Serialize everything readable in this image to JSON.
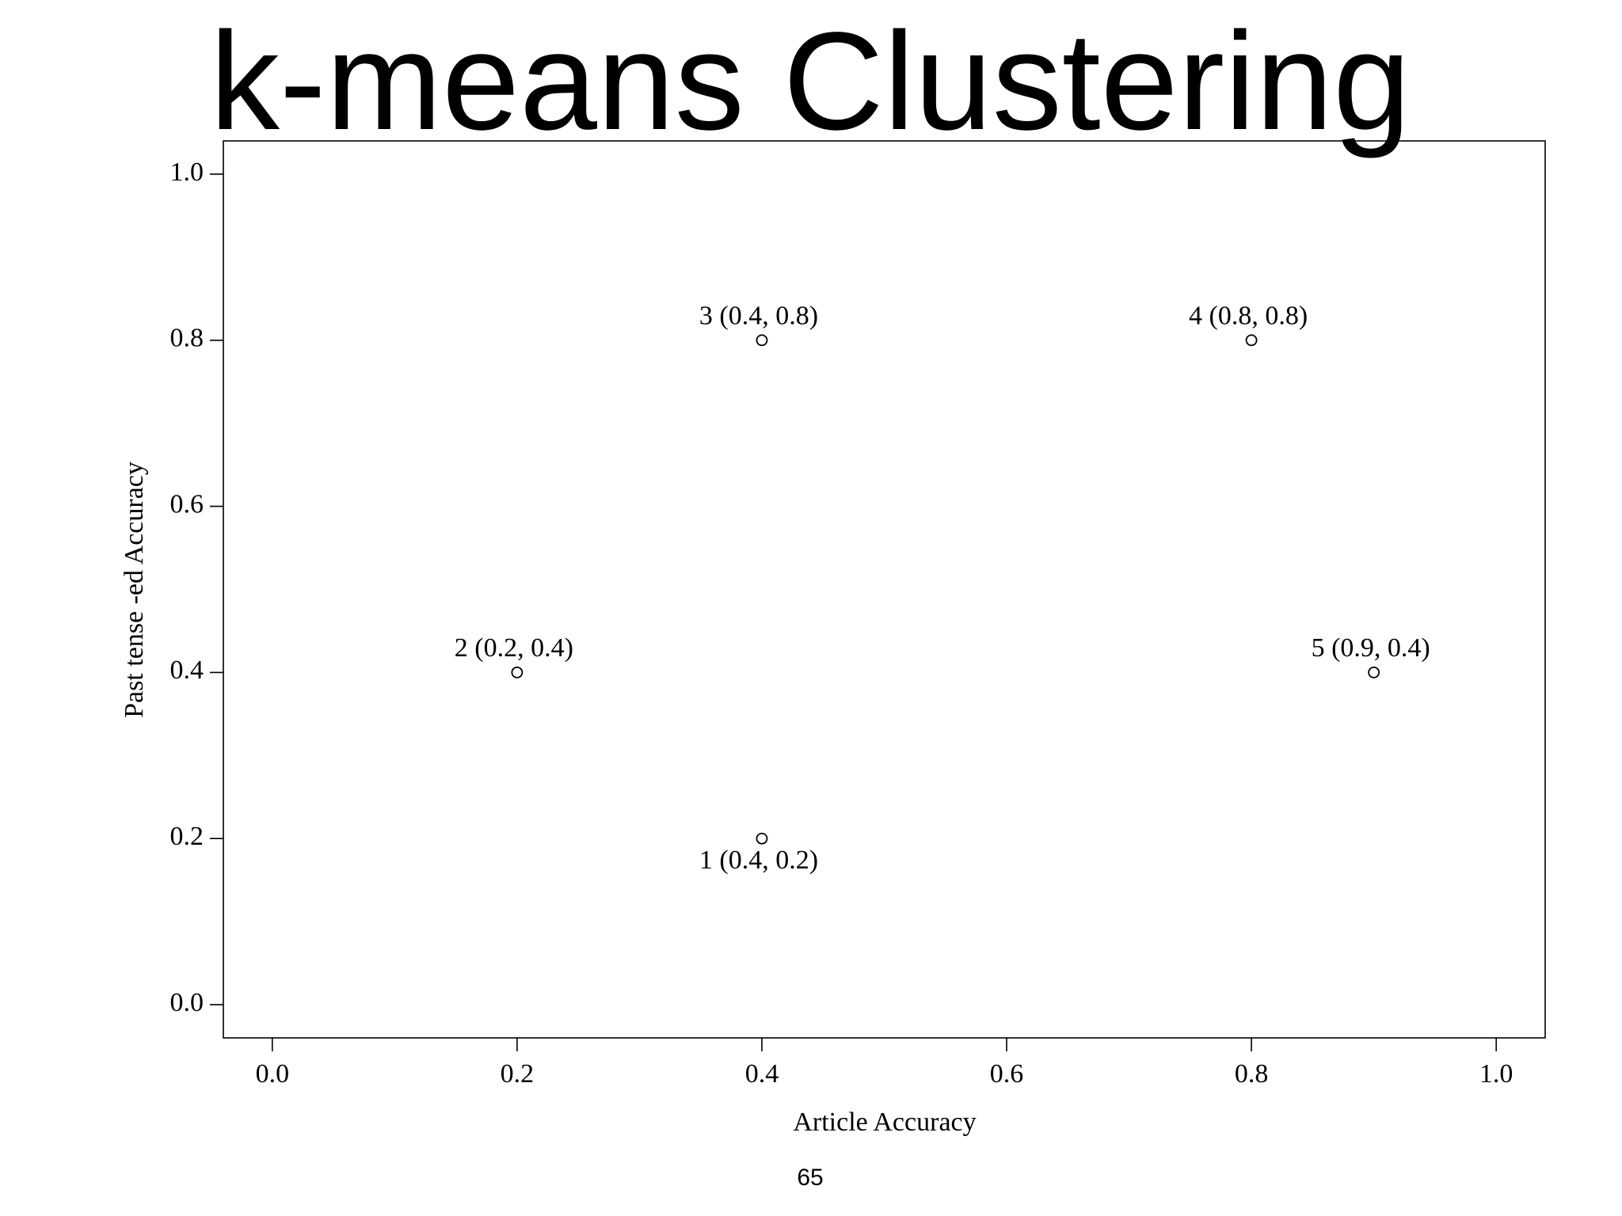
{
  "chart_data": {
    "type": "scatter",
    "title": "k-means Clustering",
    "x_label": "Article Accuracy",
    "y_label": "Past tense -ed Accuracy",
    "x": [
      0.4,
      0.2,
      0.4,
      0.8,
      0.9
    ],
    "y": [
      0.2,
      0.4,
      0.8,
      0.8,
      0.4
    ],
    "labels": [
      "1 (0.4, 0.2)",
      "2 (0.2, 0.4)",
      "3 (0.4, 0.8)",
      "4 (0.8, 0.8)",
      "5 (0.9, 0.4)"
    ],
    "color": "#000000",
    "xlim": [
      -0.04,
      1.04
    ],
    "ylim": [
      -0.04,
      1.04
    ],
    "xticks": [
      {
        "value": 0,
        "label": "0.0"
      },
      0.2,
      0.4,
      0.6,
      0.8,
      {
        "value": 1,
        "label": "1.0"
      }
    ],
    "yticks": [
      {
        "value": 0,
        "label": "0.0"
      },
      0.2,
      0.4,
      0.6,
      0.8,
      {
        "value": 1,
        "label": "1.0"
      }
    ]
  },
  "page_number": "65"
}
